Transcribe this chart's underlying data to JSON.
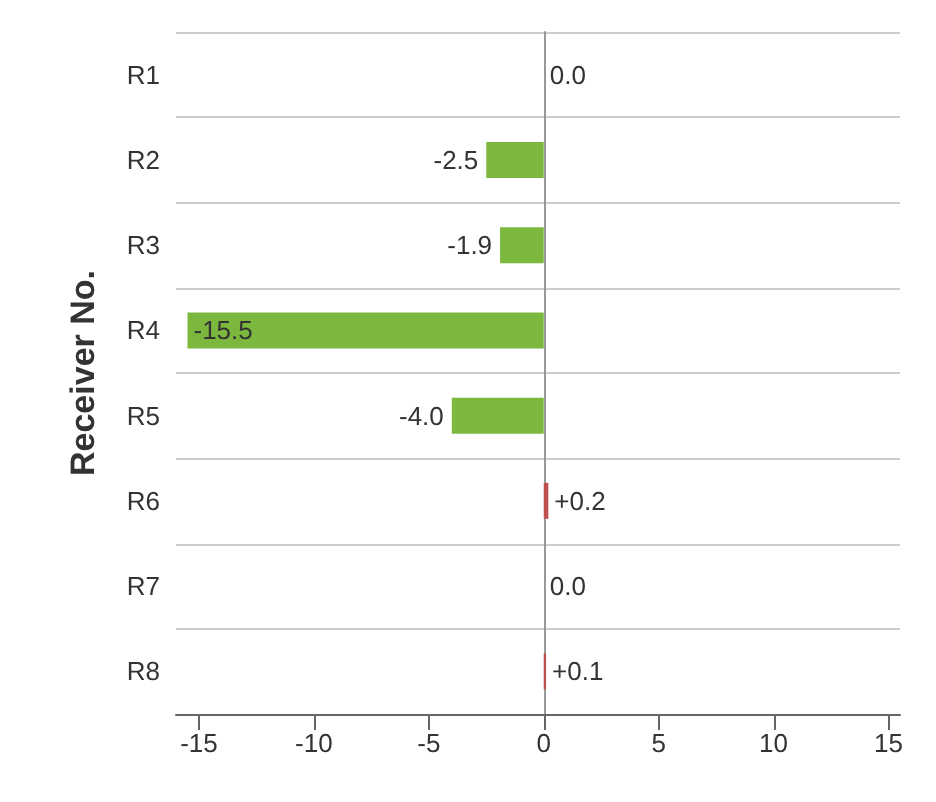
{
  "chart_data": {
    "type": "bar",
    "orientation": "horizontal",
    "ylabel": "Receiver No.",
    "categories": [
      "R1",
      "R2",
      "R3",
      "R4",
      "R5",
      "R6",
      "R7",
      "R8"
    ],
    "values": [
      0.0,
      -2.5,
      -1.9,
      -15.5,
      -4.0,
      0.2,
      0.0,
      0.1
    ],
    "colors": [
      "#7a7a7a",
      "#7cb83e",
      "#7cb83e",
      "#7cb83e",
      "#7cb83e",
      "#c0504d",
      "#7a7a7a",
      "#c0504d"
    ],
    "value_labels": [
      "0.0",
      "-2.5",
      "-1.9",
      "-15.5",
      "-4.0",
      "+0.2",
      "0.0",
      "+0.1"
    ],
    "xlim": [
      -16,
      15.5
    ],
    "xticks": [
      -15,
      -10,
      -5,
      0,
      5,
      10,
      15
    ],
    "grid": "y"
  }
}
